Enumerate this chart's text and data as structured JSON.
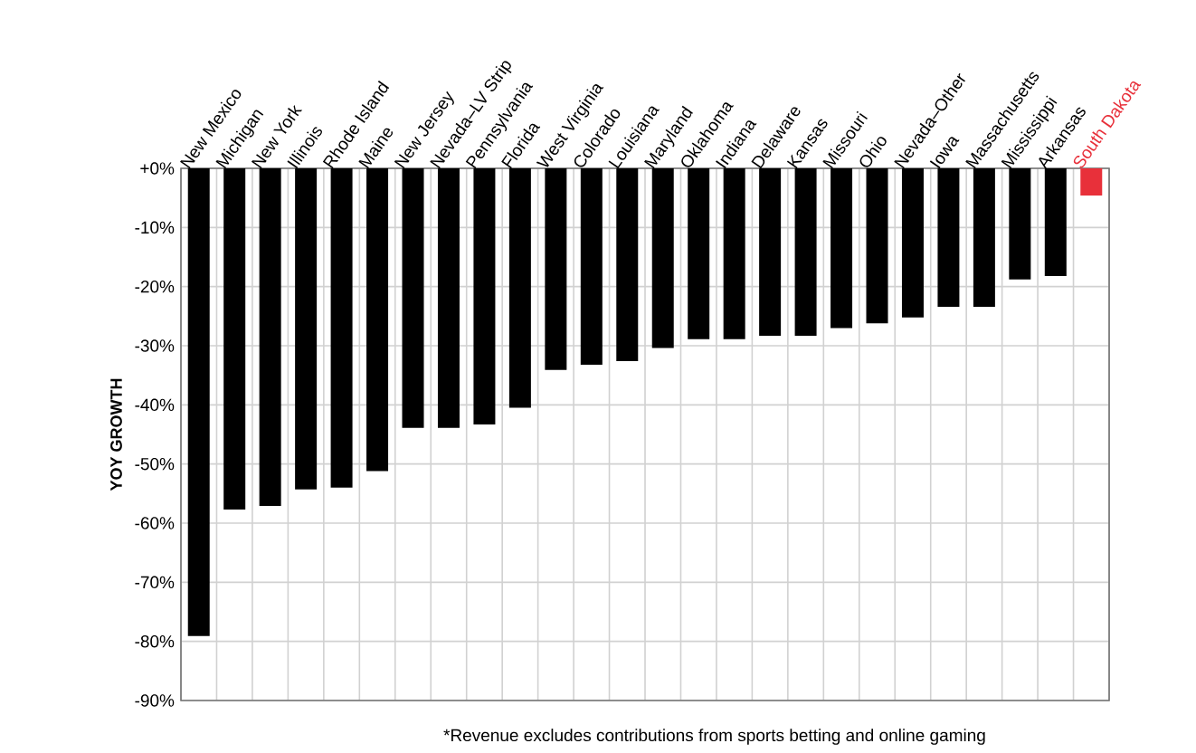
{
  "chart_data": {
    "type": "bar",
    "ylabel": "YOY GROWTH",
    "categories": [
      "New Mexico",
      "Michigan",
      "New York",
      "Illinois",
      "Rhode Island",
      "Maine",
      "New Jersey",
      "Nevada–LV Strip",
      "Pennsylvania",
      "Florida",
      "West Virginia",
      "Colorado",
      "Louisiana",
      "Maryland",
      "Oklahoma",
      "Indiana",
      "Delaware",
      "Kansas",
      "Missouri",
      "Ohio",
      "Nevada–Other",
      "Iowa",
      "Massachusetts",
      "Mississippi",
      "Arkansas",
      "South Dakota"
    ],
    "values": [
      -79.1,
      -57.7,
      -57.1,
      -54.3,
      -54.0,
      -51.2,
      -43.9,
      -43.9,
      -43.3,
      -40.5,
      -34.1,
      -33.2,
      -32.6,
      -30.4,
      -28.9,
      -28.9,
      -28.3,
      -28.3,
      -27.0,
      -26.2,
      -25.2,
      -23.4,
      -23.4,
      -18.8,
      -18.2,
      -4.6
    ],
    "colors": [
      "#000000",
      "#000000",
      "#000000",
      "#000000",
      "#000000",
      "#000000",
      "#000000",
      "#000000",
      "#000000",
      "#000000",
      "#000000",
      "#000000",
      "#000000",
      "#000000",
      "#000000",
      "#000000",
      "#000000",
      "#000000",
      "#000000",
      "#000000",
      "#000000",
      "#000000",
      "#000000",
      "#000000",
      "#000000",
      "#e8303a"
    ],
    "ylim": [
      -90,
      0
    ],
    "yticks": [
      {
        "value": 0,
        "label": "+0%"
      },
      {
        "value": -10,
        "label": "-10%"
      },
      {
        "value": -20,
        "label": "-20%"
      },
      {
        "value": -30,
        "label": "-30%"
      },
      {
        "value": -40,
        "label": "-40%"
      },
      {
        "value": -50,
        "label": "-50%"
      },
      {
        "value": -60,
        "label": "-60%"
      },
      {
        "value": -70,
        "label": "-70%"
      },
      {
        "value": -80,
        "label": "-80%"
      },
      {
        "value": -90,
        "label": "-90%"
      }
    ],
    "grid": true,
    "annotations": [
      "*Revenue excludes contributions from sports betting and online gaming"
    ]
  }
}
